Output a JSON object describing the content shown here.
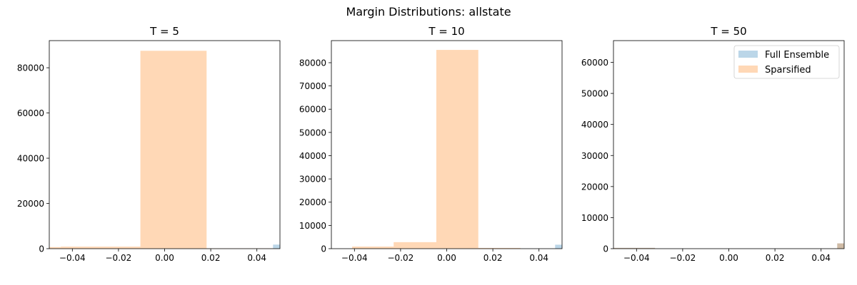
{
  "figure": {
    "title": "Margin Distributions: allstate"
  },
  "colors": {
    "full": "#1f77b4",
    "sparsified": "#ff7f0e",
    "full_alpha": 0.3,
    "sparsified_alpha": 0.3
  },
  "chart_data": [
    {
      "type": "histogram",
      "title": "T = 5",
      "xlim": [
        -0.05,
        0.05
      ],
      "ylim": [
        0,
        92000
      ],
      "xticks": [
        "−0.04",
        "−0.02",
        "0.00",
        "0.02",
        "0.04"
      ],
      "xtick_values": [
        -0.04,
        -0.02,
        0.0,
        0.02,
        0.04
      ],
      "yticks": [
        "0",
        "20000",
        "40000",
        "60000",
        "80000"
      ],
      "ytick_values": [
        0,
        20000,
        40000,
        60000,
        80000
      ],
      "series": [
        {
          "name": "Full Ensemble",
          "key": "full",
          "bins": [
            {
              "x0": 0.047,
              "x1": 0.051,
              "y": 1800
            }
          ]
        },
        {
          "name": "Sparsified",
          "key": "sparsified",
          "bins": [
            {
              "x0": -0.05,
              "x1": -0.045,
              "y": 700
            },
            {
              "x0": -0.045,
              "x1": -0.0105,
              "y": 900
            },
            {
              "x0": -0.0105,
              "x1": 0.0182,
              "y": 87500
            },
            {
              "x0": 0.0182,
              "x1": 0.05,
              "y": 150
            }
          ]
        }
      ],
      "legend": null
    },
    {
      "type": "histogram",
      "title": "T = 10",
      "xlim": [
        -0.05,
        0.05
      ],
      "ylim": [
        0,
        89500
      ],
      "xticks": [
        "−0.04",
        "−0.02",
        "0.00",
        "0.02",
        "0.04"
      ],
      "xtick_values": [
        -0.04,
        -0.02,
        0.0,
        0.02,
        0.04
      ],
      "yticks": [
        "0",
        "10000",
        "20000",
        "30000",
        "40000",
        "50000",
        "60000",
        "70000",
        "80000"
      ],
      "ytick_values": [
        0,
        10000,
        20000,
        30000,
        40000,
        50000,
        60000,
        70000,
        80000
      ],
      "series": [
        {
          "name": "Full Ensemble",
          "key": "full",
          "bins": [
            {
              "x0": 0.047,
              "x1": 0.051,
              "y": 1700
            }
          ]
        },
        {
          "name": "Sparsified",
          "key": "sparsified",
          "bins": [
            {
              "x0": -0.041,
              "x1": -0.023,
              "y": 900
            },
            {
              "x0": -0.023,
              "x1": -0.0045,
              "y": 2800
            },
            {
              "x0": -0.0045,
              "x1": 0.0137,
              "y": 85500
            },
            {
              "x0": 0.0137,
              "x1": 0.032,
              "y": 300
            }
          ]
        }
      ],
      "legend": null
    },
    {
      "type": "histogram",
      "title": "T = 50",
      "xlim": [
        -0.05,
        0.05
      ],
      "ylim": [
        0,
        67000
      ],
      "xticks": [
        "−0.04",
        "−0.02",
        "0.00",
        "0.02",
        "0.04"
      ],
      "xtick_values": [
        -0.04,
        -0.02,
        0.0,
        0.02,
        0.04
      ],
      "yticks": [
        "0",
        "10000",
        "20000",
        "30000",
        "40000",
        "50000",
        "60000"
      ],
      "ytick_values": [
        0,
        10000,
        20000,
        30000,
        40000,
        50000,
        60000
      ],
      "series": [
        {
          "name": "Full Ensemble",
          "key": "full",
          "bins": [
            {
              "x0": 0.047,
              "x1": 0.051,
              "y": 1700
            },
            {
              "x0": -0.05,
              "x1": -0.032,
              "y": 250
            }
          ]
        },
        {
          "name": "Sparsified",
          "key": "sparsified",
          "bins": [
            {
              "x0": 0.047,
              "x1": 0.051,
              "y": 1700
            },
            {
              "x0": -0.05,
              "x1": -0.032,
              "y": 250
            }
          ]
        }
      ],
      "legend": {
        "placement": "upper right",
        "entries": [
          "Full Ensemble",
          "Sparsified"
        ]
      }
    }
  ]
}
